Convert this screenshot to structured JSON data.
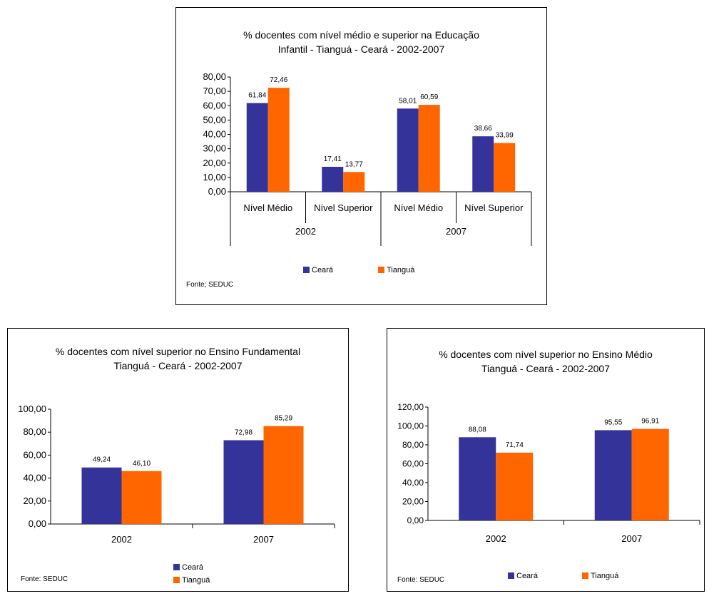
{
  "colors": {
    "ceara": "#33339a",
    "tiangua": "#ff6600"
  },
  "chart_data": [
    {
      "type": "bar",
      "title": "% docentes com nível médio e superior na  Educação\nInfantil - Tianguá - Ceará - 2002-2007",
      "groups": [
        "2002",
        "2007"
      ],
      "categories": [
        "Nível Médio",
        "Nível Superior",
        "Nível Médio",
        "Nível Superior"
      ],
      "category_group": [
        0,
        0,
        1,
        1
      ],
      "series": [
        {
          "name": "Ceará",
          "values": [
            61.84,
            17.41,
            58.01,
            38.66
          ],
          "labels": [
            "61,84",
            "17,41",
            "58,01",
            "38,66"
          ]
        },
        {
          "name": "Tianguá",
          "values": [
            72.46,
            13.77,
            60.59,
            33.99
          ],
          "labels": [
            "72,46",
            "13,77",
            "60,59",
            "33,99"
          ]
        }
      ],
      "ylim": [
        0,
        80
      ],
      "yticks": [
        "0,00",
        "10,00",
        "20,00",
        "30,00",
        "40,00",
        "50,00",
        "60,00",
        "70,00",
        "80,00"
      ],
      "legend_position": "bottom",
      "source": "Fonte; SEDUC",
      "grid": false
    },
    {
      "type": "bar",
      "title": "% docentes com nível superior no  Ensino Fundamental\nTianguá -  Ceará - 2002-2007",
      "categories": [
        "2002",
        "2007"
      ],
      "series": [
        {
          "name": "Ceará",
          "values": [
            49.24,
            72.98
          ],
          "labels": [
            "49,24",
            "72,98"
          ]
        },
        {
          "name": "Tianguá",
          "values": [
            46.1,
            85.29
          ],
          "labels": [
            "46,10",
            "85,29"
          ]
        }
      ],
      "ylim": [
        0,
        100
      ],
      "yticks": [
        "0,00",
        "20,00",
        "40,00",
        "60,00",
        "80,00",
        "100,00"
      ],
      "legend_position": "bottom",
      "source": "Fonte: SEDUC",
      "grid": false
    },
    {
      "type": "bar",
      "title": "% docentes com nível superior no Ensino Médio\nTianguá -  Ceará - 2002-2007",
      "categories": [
        "2002",
        "2007"
      ],
      "series": [
        {
          "name": "Ceará",
          "values": [
            88.08,
            95.55
          ],
          "labels": [
            "88,08",
            "95,55"
          ]
        },
        {
          "name": "Tianguá",
          "values": [
            71.74,
            96.91
          ],
          "labels": [
            "71,74",
            "96,91"
          ]
        }
      ],
      "ylim": [
        0,
        120
      ],
      "yticks": [
        "0,00",
        "20,00",
        "40,00",
        "60,00",
        "80,00",
        "100,00",
        "120,00"
      ],
      "legend_position": "bottom",
      "source": "Fonte: SEDUC",
      "grid": false
    }
  ]
}
